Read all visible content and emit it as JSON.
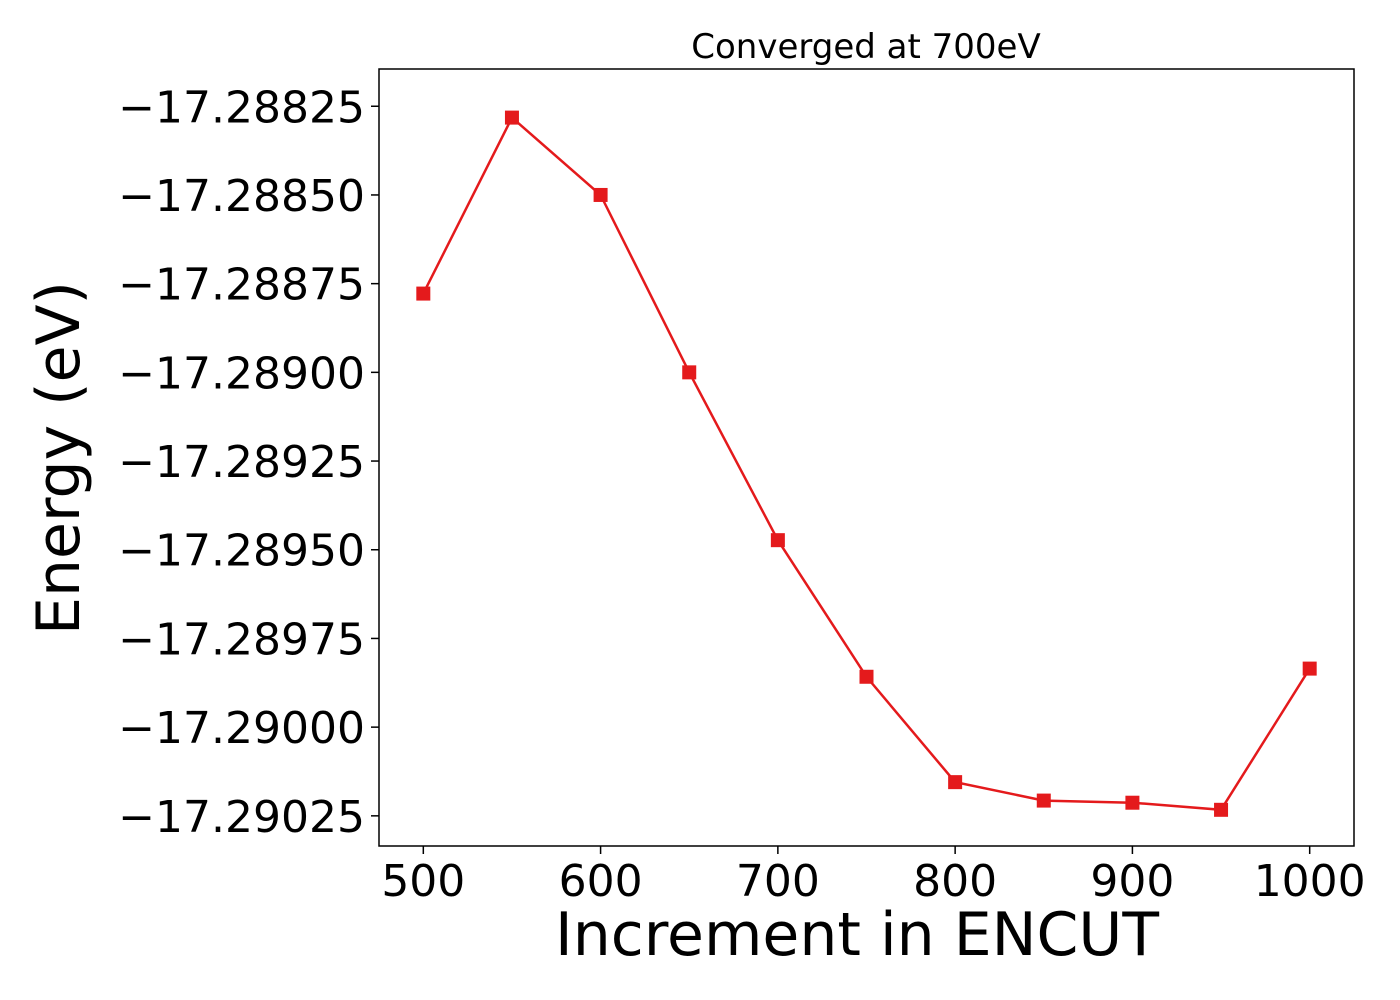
{
  "chart_data": {
    "type": "line",
    "title": "Converged at 700eV",
    "xlabel": "Increment in ENCUT",
    "ylabel": "Energy (eV)",
    "xlim": [
      475,
      1025
    ],
    "ylim": [
      -17.290335,
      -17.288145
    ],
    "xticks": [
      500,
      600,
      700,
      800,
      900,
      1000
    ],
    "xtick_labels": [
      "500",
      "600",
      "700",
      "800",
      "900",
      "1000"
    ],
    "yticks": [
      -17.28825,
      -17.2885,
      -17.28875,
      -17.289,
      -17.28925,
      -17.2895,
      -17.28975,
      -17.29,
      -17.29025
    ],
    "ytick_labels": [
      "−17.28825",
      "−17.28850",
      "−17.28875",
      "−17.28900",
      "−17.28925",
      "−17.28950",
      "−17.28975",
      "−17.29000",
      "−17.29025"
    ],
    "grid": false,
    "series": [
      {
        "color": "#e41a1c",
        "marker": "square",
        "x": [
          500,
          550,
          600,
          650,
          700,
          750,
          800,
          850,
          900,
          950,
          1000
        ],
        "y": [
          -17.288778,
          -17.288282,
          -17.2885,
          -17.289,
          -17.289473,
          -17.289858,
          -17.290155,
          -17.290207,
          -17.290213,
          -17.290233,
          -17.289835
        ]
      }
    ]
  }
}
